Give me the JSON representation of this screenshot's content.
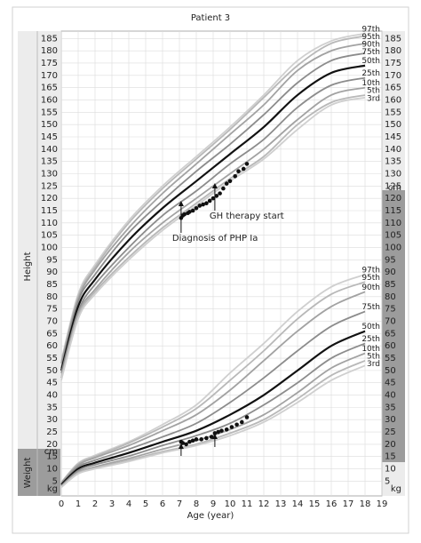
{
  "chart_data": {
    "type": "line",
    "title": "Patient 3",
    "xlabel": "Age (year)",
    "side_labels": [
      "Height",
      "Weight"
    ],
    "left_units": [
      "cm",
      "kg"
    ],
    "right_units": [
      "cm",
      "kg"
    ],
    "xlim": [
      0,
      19
    ],
    "xticks": [
      0,
      1,
      2,
      3,
      4,
      5,
      6,
      7,
      8,
      9,
      10,
      11,
      12,
      13,
      14,
      15,
      16,
      17,
      18,
      19
    ],
    "ylim": [
      -1,
      188
    ],
    "yticks": [
      5,
      10,
      15,
      20,
      25,
      30,
      35,
      40,
      45,
      50,
      55,
      60,
      65,
      70,
      75,
      80,
      85,
      90,
      95,
      100,
      105,
      110,
      115,
      120,
      125,
      130,
      135,
      140,
      145,
      150,
      155,
      160,
      165,
      170,
      175,
      180,
      185
    ],
    "grid": true,
    "x": [
      0,
      1,
      2,
      4,
      6,
      8,
      10,
      12,
      14,
      16,
      18
    ],
    "height": {
      "series": [
        {
          "name": "97th",
          "color": "#cfcfcf",
          "values": [
            54,
            81,
            93,
            111,
            125,
            137,
            149,
            162,
            176,
            184,
            187
          ]
        },
        {
          "name": "95th",
          "color": "#b8b8b8",
          "values": [
            53,
            80,
            92,
            110,
            124,
            136,
            148,
            161,
            174,
            183,
            186
          ]
        },
        {
          "name": "90th",
          "color": "#a2a2a2",
          "values": [
            53,
            79,
            91,
            108,
            122,
            134,
            146,
            158,
            172,
            180,
            183
          ]
        },
        {
          "name": "75th",
          "color": "#8c8c8c",
          "values": [
            51,
            78,
            89,
            106,
            119,
            131,
            142,
            154,
            167,
            176,
            179
          ]
        },
        {
          "name": "50th",
          "color": "#111111",
          "values": [
            50,
            76,
            87,
            103,
            116,
            127,
            138,
            149,
            162,
            171,
            174
          ]
        },
        {
          "name": "25th",
          "color": "#8c8c8c",
          "values": [
            49,
            74,
            85,
            100,
            113,
            123,
            134,
            144,
            157,
            166,
            169
          ]
        },
        {
          "name": "10th",
          "color": "#a2a2a2",
          "values": [
            47,
            73,
            83,
            98,
            110,
            120,
            130,
            140,
            152,
            162,
            165
          ]
        },
        {
          "name": "5th",
          "color": "#b8b8b8",
          "values": [
            47,
            72,
            82,
            96,
            108,
            118,
            128,
            137,
            150,
            159,
            162
          ]
        },
        {
          "name": "3rd",
          "color": "#cfcfcf",
          "values": [
            46,
            71,
            81,
            95,
            107,
            117,
            127,
            136,
            148,
            158,
            161
          ]
        }
      ]
    },
    "weight": {
      "series": [
        {
          "name": "97th",
          "color": "#cfcfcf",
          "values": [
            4.5,
            12.3,
            15.5,
            21,
            28,
            36,
            49,
            61,
            74,
            84,
            89
          ]
        },
        {
          "name": "95th",
          "color": "#b8b8b8",
          "values": [
            4.4,
            12,
            15,
            20.5,
            27,
            34.5,
            46,
            58,
            71,
            81,
            86
          ]
        },
        {
          "name": "90th",
          "color": "#a2a2a2",
          "values": [
            4.2,
            11.5,
            14.5,
            19.5,
            25.5,
            32,
            42,
            54,
            66,
            76,
            82
          ]
        },
        {
          "name": "75th",
          "color": "#8c8c8c",
          "values": [
            3.9,
            10.8,
            13.5,
            18,
            23,
            28.5,
            37,
            47,
            58,
            68,
            74
          ]
        },
        {
          "name": "50th",
          "color": "#111111",
          "values": [
            3.5,
            10,
            12.5,
            16.5,
            21,
            25.5,
            32,
            40,
            50,
            60,
            66
          ]
        },
        {
          "name": "25th",
          "color": "#8c8c8c",
          "values": [
            3.1,
            9.3,
            11.7,
            15.2,
            19.5,
            23.5,
            28.5,
            36,
            45,
            55,
            61
          ]
        },
        {
          "name": "10th",
          "color": "#a2a2a2",
          "values": [
            2.8,
            8.7,
            10.8,
            14.2,
            18,
            21.5,
            26,
            32,
            41,
            51,
            57
          ]
        },
        {
          "name": "5th",
          "color": "#b8b8b8",
          "values": [
            2.6,
            8.3,
            10.3,
            13.5,
            17,
            20,
            24.5,
            30,
            38.5,
            48,
            54
          ]
        },
        {
          "name": "3rd",
          "color": "#cfcfcf",
          "values": [
            2.5,
            8,
            10,
            13,
            16.5,
            19.5,
            23.5,
            29,
            37,
            46,
            52
          ]
        }
      ]
    },
    "points": [
      {
        "color": "#111111",
        "x": [
          7.1,
          7.2,
          7.3,
          7.5,
          7.6,
          7.8,
          8.0,
          8.2,
          8.4,
          8.6,
          8.8,
          9.0,
          9.2,
          9.4,
          9.6,
          9.8,
          10.0,
          10.3,
          10.5,
          10.8,
          11.0
        ],
        "values": [
          112,
          113,
          113.5,
          114,
          114.5,
          115,
          116,
          117,
          117.5,
          118,
          119,
          120,
          121,
          122,
          124,
          126,
          127,
          129,
          131,
          132,
          134
        ]
      },
      {
        "color": "#111111",
        "x": [
          7.1,
          7.2,
          7.4,
          7.6,
          7.8,
          8.0,
          8.3,
          8.6,
          8.9,
          9.1,
          9.3,
          9.5,
          9.8,
          10.1,
          10.4,
          10.7,
          11.0
        ],
        "values": [
          21,
          20.5,
          20,
          21,
          21.5,
          22,
          22,
          22.5,
          23,
          24.5,
          25,
          25.5,
          26,
          27,
          28,
          29,
          31
        ]
      }
    ],
    "annotations": [
      {
        "text": "Diagnosis of PHP Ia",
        "x": 7.1
      },
      {
        "text": "GH therapy start",
        "x": 9.1
      }
    ]
  }
}
